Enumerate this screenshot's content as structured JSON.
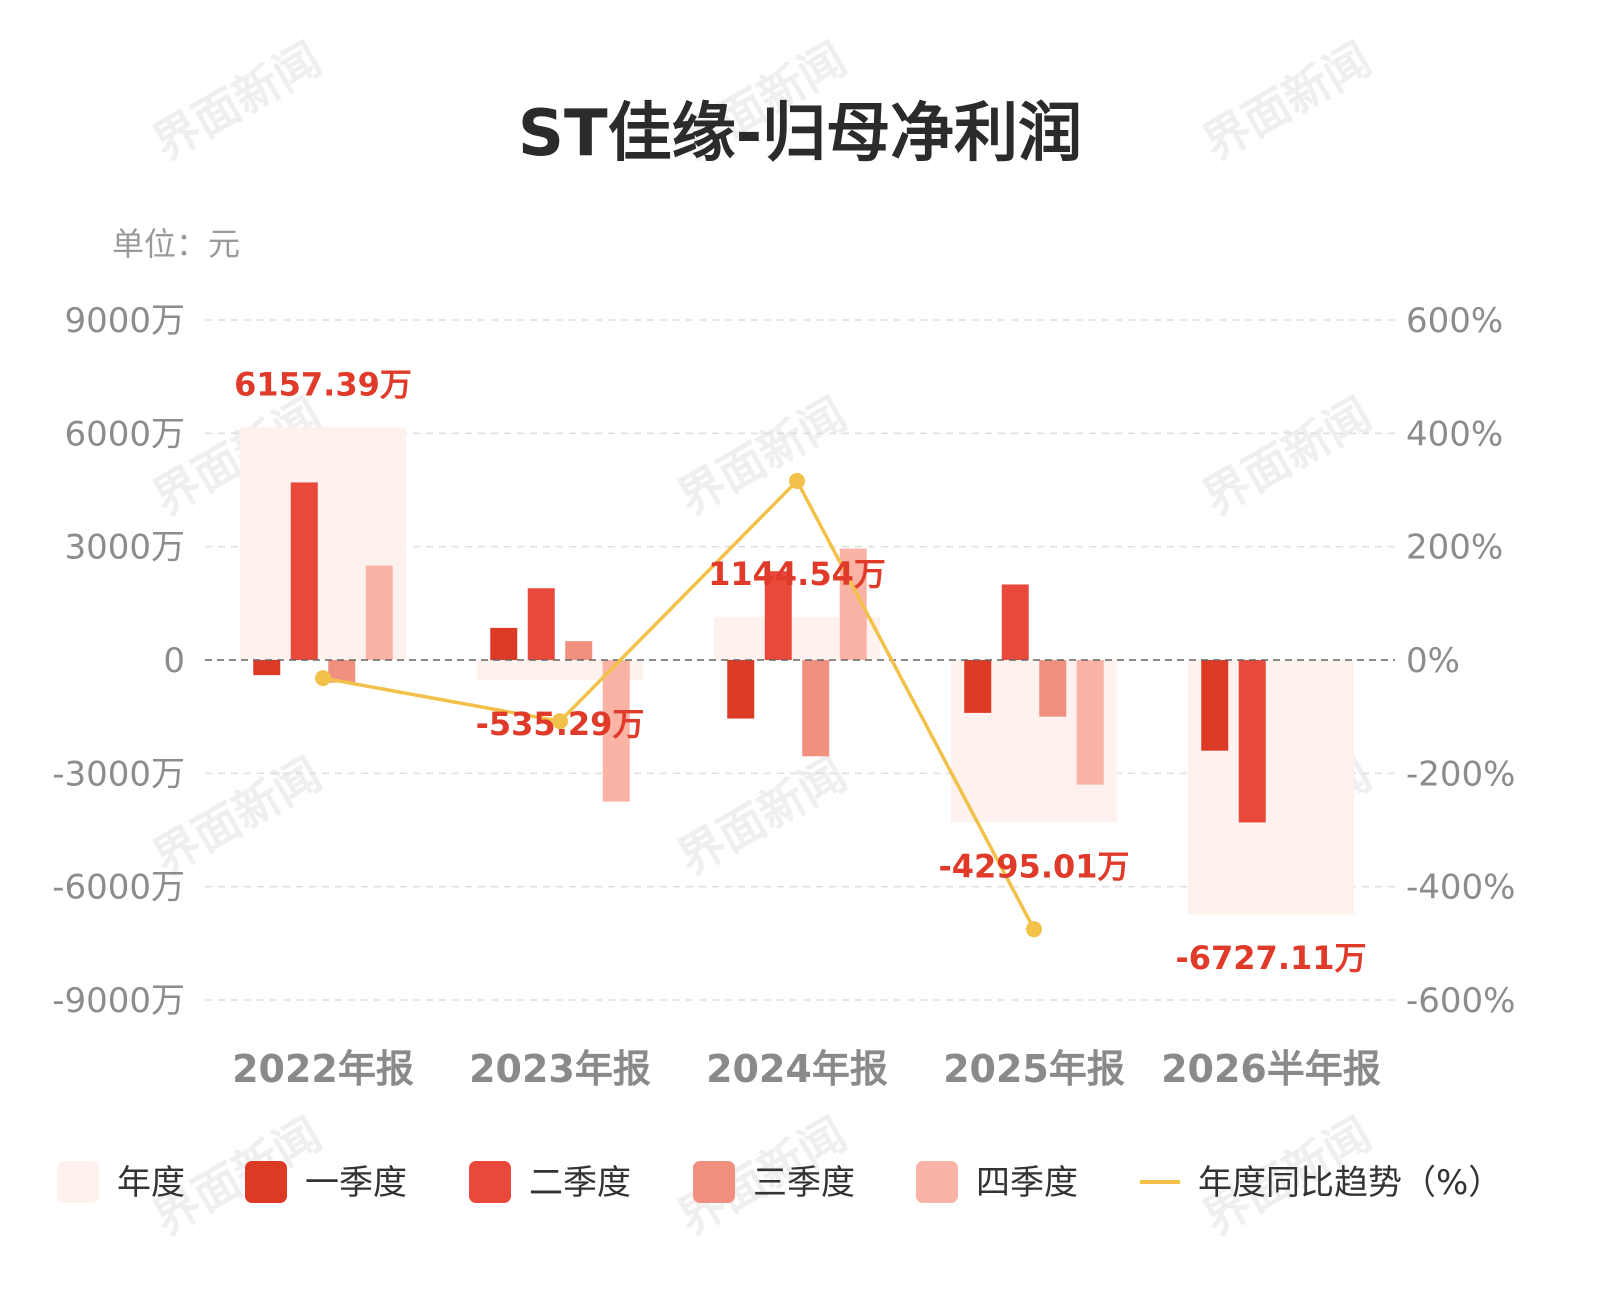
{
  "chart_data": {
    "type": "bar",
    "title": "ST佳缘-归母净利润",
    "unit_label": "单位：元",
    "categories": [
      "2022年报",
      "2023年报",
      "2024年报",
      "2025年报",
      "2026半年报"
    ],
    "y_left": {
      "min": -9000,
      "max": 9000,
      "ticks": [
        9000,
        6000,
        3000,
        0,
        -3000,
        -6000,
        -9000
      ],
      "tick_labels": [
        "9000万",
        "6000万",
        "3000万",
        "0",
        "-3000万",
        "-6000万",
        "-9000万"
      ]
    },
    "y_right": {
      "min": -600,
      "max": 600,
      "ticks": [
        600,
        400,
        200,
        0,
        -200,
        -400,
        -600
      ],
      "tick_labels": [
        "600%",
        "400%",
        "200%",
        "0%",
        "-200%",
        "-400%",
        "-600%"
      ]
    },
    "annual": {
      "name": "年度",
      "values": [
        6157.39,
        -535.29,
        1144.54,
        -4295.01,
        -6727.11
      ],
      "labels": [
        "6157.39万",
        "-535.29万",
        "1144.54万",
        "-4295.01万",
        "-6727.11万"
      ]
    },
    "series": [
      {
        "name": "一季度",
        "color": "#dd3a26",
        "values": [
          -400,
          850,
          -1550,
          -1400,
          -2400
        ]
      },
      {
        "name": "二季度",
        "color": "#e9493b",
        "values": [
          4700,
          1900,
          2350,
          2000,
          -4300
        ]
      },
      {
        "name": "三季度",
        "color": "#f09180",
        "values": [
          -600,
          500,
          -2550,
          -1500,
          null
        ]
      },
      {
        "name": "四季度",
        "color": "#fab3a5",
        "values": [
          2500,
          -3750,
          2950,
          -3300,
          null
        ]
      }
    ],
    "trend": {
      "name": "年度同比趋势（%）",
      "color": "#f2c14a",
      "values": [
        -32,
        -108,
        316,
        -475
      ]
    },
    "annual_color": "#fff1ed",
    "grid": true,
    "legend_position": "bottom"
  },
  "watermark": "界面新闻"
}
